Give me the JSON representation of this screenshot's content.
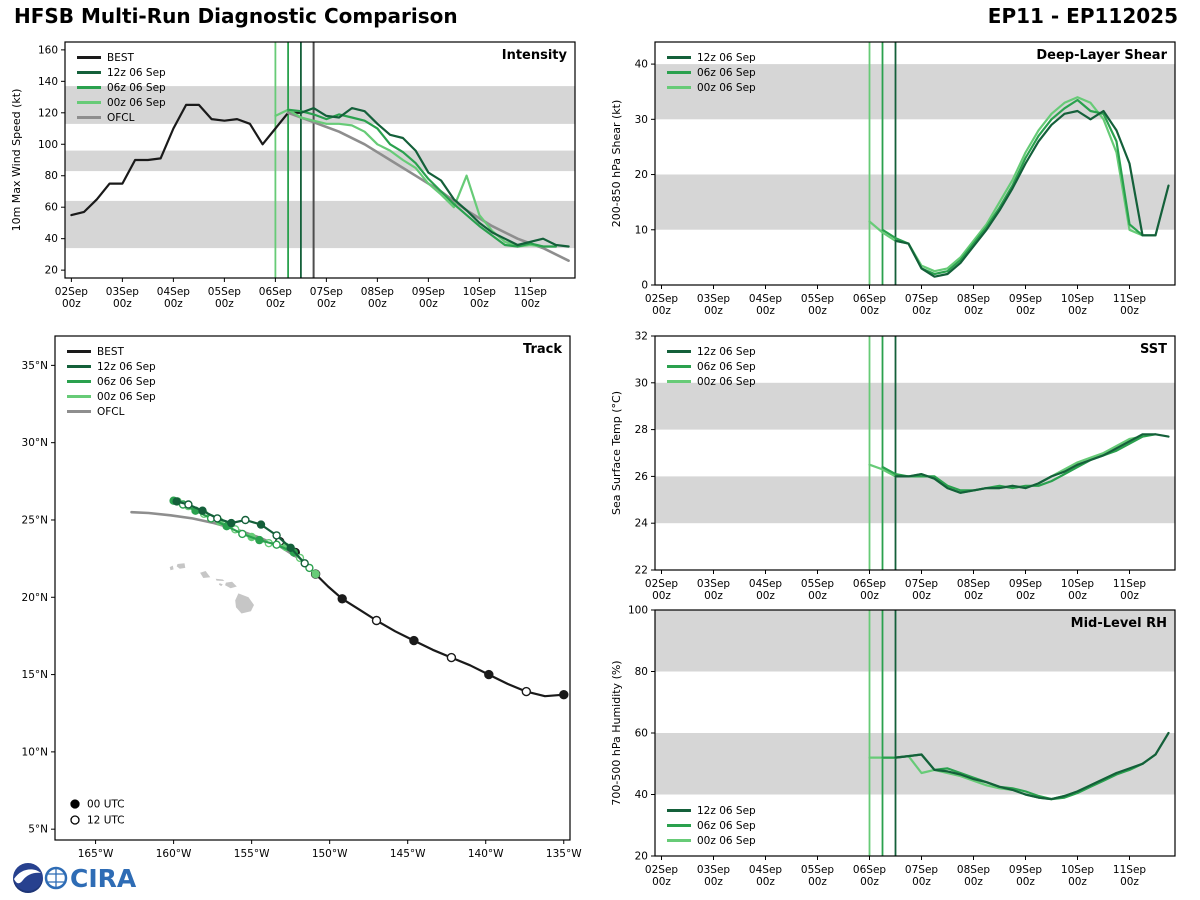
{
  "header": {
    "title": "HFSB Multi-Run Diagnostic Comparison",
    "storm_id": "EP11 - EP112025"
  },
  "palette": {
    "best": "#1a1a1a",
    "ofcl": "#8e8e8e",
    "run12z": "#14603a",
    "run06z": "#2aa14e",
    "run00z": "#67cb77",
    "band": "#d6d6d6"
  },
  "time_axis": {
    "tmin": -3,
    "tmax": 237,
    "ticks": [
      {
        "t": 0,
        "line1": "02Sep",
        "line2": "00z"
      },
      {
        "t": 24,
        "line1": "03Sep",
        "line2": "00z"
      },
      {
        "t": 48,
        "line1": "04Sep",
        "line2": "00z"
      },
      {
        "t": 72,
        "line1": "05Sep",
        "line2": "00z"
      },
      {
        "t": 96,
        "line1": "06Sep",
        "line2": "00z"
      },
      {
        "t": 120,
        "line1": "07Sep",
        "line2": "00z"
      },
      {
        "t": 144,
        "line1": "08Sep",
        "line2": "00z"
      },
      {
        "t": 168,
        "line1": "09Sep",
        "line2": "00z"
      },
      {
        "t": 192,
        "line1": "10Sep",
        "line2": "00z"
      },
      {
        "t": 216,
        "line1": "11Sep",
        "line2": "00z"
      }
    ]
  },
  "init_lines": [
    {
      "t": 96,
      "color": "run00z"
    },
    {
      "t": 102,
      "color": "run06z"
    },
    {
      "t": 108,
      "color": "run12z"
    }
  ],
  "chart_data": [
    {
      "id": "intensity",
      "type": "line",
      "title": "Intensity",
      "ylabel": "10m Max Wind Speed (kt)",
      "ylim": [
        15,
        165
      ],
      "yticks": [
        20,
        40,
        60,
        80,
        100,
        120,
        140,
        160
      ],
      "bands": [
        [
          34,
          64
        ],
        [
          83,
          96
        ],
        [
          113,
          137
        ]
      ],
      "extra_init_line": {
        "t": 114,
        "color_hex": "#4d4d4d"
      },
      "legend_pos": "top-left",
      "draw_order": [
        0,
        4,
        3,
        2,
        1
      ],
      "series": [
        {
          "name": "BEST",
          "color": "best",
          "width": 2.2,
          "start": 0,
          "step": 6,
          "values": [
            55,
            57,
            65,
            75,
            75,
            90,
            90,
            91,
            110,
            125,
            125,
            116,
            115,
            116,
            113,
            100,
            110,
            120,
            120
          ]
        },
        {
          "name": "12z 06 Sep",
          "color": "run12z",
          "width": 2.2,
          "start": 108,
          "step": 6,
          "values": [
            120,
            123,
            118,
            117,
            123,
            121,
            113,
            106,
            104,
            96,
            82,
            77,
            65,
            58,
            50,
            44,
            40,
            36,
            38,
            40,
            36,
            35
          ]
        },
        {
          "name": "06z 06 Sep",
          "color": "run06z",
          "width": 2.2,
          "start": 102,
          "step": 6,
          "values": [
            122,
            121,
            119,
            116,
            119,
            117,
            115,
            110,
            100,
            95,
            88,
            78,
            70,
            62,
            55,
            48,
            42,
            36,
            35,
            37,
            35,
            35
          ]
        },
        {
          "name": "00z 06 Sep",
          "color": "run00z",
          "width": 2.2,
          "start": 96,
          "step": 6,
          "values": [
            118,
            122,
            117,
            115,
            113,
            113,
            112,
            108,
            100,
            96,
            90,
            85,
            75,
            68,
            60,
            80,
            55,
            45,
            38,
            35,
            36,
            35
          ]
        },
        {
          "name": "OFCL",
          "color": "ofcl",
          "width": 2.6,
          "start": 102,
          "step": 12,
          "values": [
            120,
            114,
            108,
            100,
            90,
            80,
            70,
            58,
            48,
            40,
            34,
            26
          ]
        }
      ]
    },
    {
      "id": "shear",
      "type": "line",
      "title": "Deep-Layer Shear",
      "ylabel": "200-850 hPa Shear (kt)",
      "ylim": [
        0,
        44
      ],
      "yticks": [
        0,
        10,
        20,
        30,
        40
      ],
      "bands": [
        [
          10,
          20
        ],
        [
          30,
          40
        ]
      ],
      "legend_pos": "top-left",
      "draw_order": [
        2,
        1,
        0
      ],
      "series": [
        {
          "name": "12z 06 Sep",
          "color": "run12z",
          "width": 2.2,
          "start": 108,
          "step": 6,
          "values": [
            8,
            7.5,
            3,
            1.5,
            2,
            4,
            7,
            10,
            13.5,
            17.5,
            22,
            26,
            29,
            31,
            31.5,
            30,
            31.5,
            28,
            22,
            9,
            9,
            18
          ]
        },
        {
          "name": "06z 06 Sep",
          "color": "run06z",
          "width": 2.2,
          "start": 102,
          "step": 6,
          "values": [
            10,
            8.5,
            7.5,
            3,
            2,
            2.5,
            4.5,
            7.5,
            10.5,
            14,
            18,
            23,
            27,
            30,
            32,
            33.5,
            31.5,
            31,
            26,
            11,
            9,
            9
          ]
        },
        {
          "name": "00z 06 Sep",
          "color": "run00z",
          "width": 2.2,
          "start": 96,
          "step": 6,
          "values": [
            11.5,
            9.5,
            8,
            7.5,
            3.5,
            2.5,
            3,
            5,
            8,
            11,
            15,
            19,
            24,
            28,
            31,
            33,
            34,
            33,
            30,
            24,
            10,
            9
          ]
        }
      ]
    },
    {
      "id": "sst",
      "type": "line",
      "title": "SST",
      "ylabel": "Sea Surface Temp (°C)",
      "ylim": [
        22,
        32
      ],
      "yticks": [
        22,
        24,
        26,
        28,
        30,
        32
      ],
      "bands": [
        [
          24,
          26
        ],
        [
          28,
          30
        ]
      ],
      "legend_pos": "top-left",
      "draw_order": [
        2,
        1,
        0
      ],
      "series": [
        {
          "name": "12z 06 Sep",
          "color": "run12z",
          "width": 2.2,
          "start": 108,
          "step": 6,
          "values": [
            26.0,
            26.0,
            26.1,
            25.9,
            25.5,
            25.3,
            25.4,
            25.5,
            25.5,
            25.6,
            25.5,
            25.7,
            26.0,
            26.2,
            26.5,
            26.7,
            26.9,
            27.2,
            27.5,
            27.8,
            27.8,
            27.7
          ]
        },
        {
          "name": "06z 06 Sep",
          "color": "run06z",
          "width": 2.2,
          "start": 102,
          "step": 6,
          "values": [
            26.4,
            26.1,
            26.0,
            26.0,
            26.0,
            25.6,
            25.4,
            25.4,
            25.5,
            25.6,
            25.5,
            25.6,
            25.6,
            25.8,
            26.1,
            26.4,
            26.7,
            26.9,
            27.1,
            27.4,
            27.7,
            27.8
          ]
        },
        {
          "name": "00z 06 Sep",
          "color": "run00z",
          "width": 2.2,
          "start": 96,
          "step": 6,
          "values": [
            26.5,
            26.3,
            26.0,
            26.0,
            26.1,
            25.9,
            25.5,
            25.3,
            25.4,
            25.5,
            25.5,
            25.6,
            25.5,
            25.7,
            26.0,
            26.3,
            26.6,
            26.8,
            27.0,
            27.3,
            27.6,
            27.7
          ]
        }
      ]
    },
    {
      "id": "rh",
      "type": "line",
      "title": "Mid-Level RH",
      "ylabel": "700-500 hPa Humidity (%)",
      "ylim": [
        20,
        100
      ],
      "yticks": [
        20,
        40,
        60,
        80,
        100
      ],
      "bands": [
        [
          40,
          60
        ],
        [
          80,
          100
        ]
      ],
      "legend_pos": "bottom-left",
      "draw_order": [
        2,
        1,
        0
      ],
      "series": [
        {
          "name": "12z 06 Sep",
          "color": "run12z",
          "width": 2.2,
          "start": 108,
          "step": 6,
          "values": [
            52,
            52.5,
            53,
            48,
            47.5,
            46.5,
            45,
            44,
            42.5,
            41.5,
            40,
            39,
            38.5,
            39.5,
            41,
            43,
            45,
            47,
            48.5,
            50,
            53,
            60
          ]
        },
        {
          "name": "06z 06 Sep",
          "color": "run06z",
          "width": 2.2,
          "start": 102,
          "step": 6,
          "values": [
            52,
            52,
            52.5,
            53,
            48,
            48.5,
            47,
            45.5,
            44,
            42.5,
            42,
            41,
            39.5,
            38.5,
            39,
            40.5,
            42.5,
            44.5,
            46.5,
            48,
            50,
            53
          ]
        },
        {
          "name": "00z 06 Sep",
          "color": "run00z",
          "width": 2.2,
          "start": 96,
          "step": 6,
          "values": [
            52,
            52,
            52,
            52.5,
            47,
            48,
            47,
            46,
            44.5,
            43,
            42,
            41.5,
            40,
            39,
            38.5,
            39.5,
            41,
            43,
            45,
            47,
            48,
            50
          ]
        }
      ]
    },
    {
      "id": "track",
      "type": "track",
      "title": "Track",
      "lon_range": [
        167.6,
        134.6
      ],
      "lat_range": [
        4.3,
        36.9
      ],
      "lon_ticks": [
        {
          "v": 165,
          "label": "165°W"
        },
        {
          "v": 160,
          "label": "160°W"
        },
        {
          "v": 155,
          "label": "155°W"
        },
        {
          "v": 150,
          "label": "150°W"
        },
        {
          "v": 145,
          "label": "145°W"
        },
        {
          "v": 140,
          "label": "140°W"
        },
        {
          "v": 135,
          "label": "135°W"
        }
      ],
      "lat_ticks": [
        {
          "v": 5,
          "label": "5°N"
        },
        {
          "v": 10,
          "label": "10°N"
        },
        {
          "v": 15,
          "label": "15°N"
        },
        {
          "v": 20,
          "label": "20°N"
        },
        {
          "v": 25,
          "label": "25°N"
        },
        {
          "v": 30,
          "label": "30°N"
        },
        {
          "v": 35,
          "label": "35°N"
        }
      ],
      "islands": [
        [
          [
            155.85,
            20.25
          ],
          [
            155.2,
            20.0
          ],
          [
            154.85,
            19.5
          ],
          [
            155.05,
            19.1
          ],
          [
            155.65,
            18.95
          ],
          [
            156.0,
            19.35
          ],
          [
            156.05,
            19.8
          ]
        ],
        [
          [
            156.65,
            20.95
          ],
          [
            156.25,
            21.0
          ],
          [
            155.95,
            20.7
          ],
          [
            156.35,
            20.58
          ],
          [
            156.7,
            20.78
          ]
        ],
        [
          [
            157.3,
            21.2
          ],
          [
            156.85,
            21.15
          ],
          [
            156.75,
            21.05
          ],
          [
            157.25,
            21.08
          ]
        ],
        [
          [
            157.05,
            20.92
          ],
          [
            156.85,
            20.83
          ],
          [
            156.95,
            20.72
          ],
          [
            157.1,
            20.82
          ]
        ],
        [
          [
            158.3,
            21.58
          ],
          [
            157.95,
            21.7
          ],
          [
            157.65,
            21.3
          ],
          [
            158.1,
            21.25
          ]
        ],
        [
          [
            159.75,
            22.15
          ],
          [
            159.3,
            22.2
          ],
          [
            159.25,
            21.9
          ],
          [
            159.6,
            21.85
          ],
          [
            159.8,
            22.0
          ]
        ],
        [
          [
            160.25,
            21.95
          ],
          [
            160.05,
            22.05
          ],
          [
            160.0,
            21.8
          ],
          [
            160.2,
            21.75
          ]
        ]
      ],
      "legend_pos": "top-left",
      "draw_order": [
        0,
        4,
        3,
        2,
        1
      ],
      "series": [
        {
          "name": "BEST",
          "color": "best",
          "width": 2.2,
          "marker_every": 2,
          "filled_first": true,
          "points": [
            [
              135.0,
              13.7
            ],
            [
              136.2,
              13.6
            ],
            [
              137.4,
              13.9
            ],
            [
              138.6,
              14.4
            ],
            [
              139.8,
              15.0
            ],
            [
              141.0,
              15.6
            ],
            [
              142.2,
              16.1
            ],
            [
              143.4,
              16.6
            ],
            [
              144.6,
              17.2
            ],
            [
              145.8,
              17.8
            ],
            [
              147.0,
              18.5
            ],
            [
              148.1,
              19.2
            ],
            [
              149.2,
              19.9
            ],
            [
              150.1,
              20.7
            ],
            [
              150.9,
              21.5
            ],
            [
              151.6,
              22.2
            ],
            [
              152.2,
              22.9
            ],
            [
              152.7,
              23.4
            ],
            [
              153.2,
              23.6
            ]
          ]
        },
        {
          "name": "12z 06 Sep",
          "color": "run12z",
          "width": 2.2,
          "marker_every": 1,
          "filled_first": false,
          "points": [
            [
              151.6,
              22.2
            ],
            [
              152.5,
              23.2
            ],
            [
              153.4,
              24.0
            ],
            [
              154.4,
              24.7
            ],
            [
              155.4,
              25.0
            ],
            [
              156.3,
              24.8
            ],
            [
              157.2,
              25.1
            ],
            [
              158.15,
              25.6
            ],
            [
              159.05,
              26.0
            ],
            [
              159.8,
              26.2
            ]
          ]
        },
        {
          "name": "06z 06 Sep",
          "color": "run06z",
          "width": 2.2,
          "marker_every": 1,
          "filled_first": false,
          "points": [
            [
              151.3,
              21.9
            ],
            [
              152.3,
              22.9
            ],
            [
              153.4,
              23.4
            ],
            [
              154.5,
              23.7
            ],
            [
              155.6,
              24.1
            ],
            [
              156.6,
              24.6
            ],
            [
              157.6,
              25.1
            ],
            [
              158.6,
              25.6
            ],
            [
              159.4,
              26.0
            ],
            [
              160.0,
              26.25
            ]
          ]
        },
        {
          "name": "00z 06 Sep",
          "color": "run00z",
          "width": 2.2,
          "marker_every": 1,
          "filled_first": true,
          "points": [
            [
              150.9,
              21.5
            ],
            [
              151.9,
              22.55
            ],
            [
              152.8,
              23.25
            ],
            [
              153.9,
              23.5
            ],
            [
              155.0,
              23.9
            ],
            [
              156.05,
              24.4
            ],
            [
              157.05,
              24.9
            ],
            [
              158.05,
              25.4
            ],
            [
              159.05,
              25.9
            ],
            [
              159.75,
              26.2
            ]
          ]
        },
        {
          "name": "OFCL",
          "color": "ofcl",
          "width": 2.6,
          "marker_every": 0,
          "filled_first": true,
          "points": [
            [
              151.8,
              22.4
            ],
            [
              153.2,
              23.3
            ],
            [
              154.6,
              23.9
            ],
            [
              156.0,
              24.4
            ],
            [
              157.4,
              24.8
            ],
            [
              158.8,
              25.1
            ],
            [
              160.2,
              25.3
            ],
            [
              161.6,
              25.45
            ],
            [
              162.7,
              25.5
            ]
          ]
        }
      ],
      "marker_legend": [
        {
          "filled": true,
          "label": "00 UTC"
        },
        {
          "filled": false,
          "label": "12 UTC"
        }
      ]
    }
  ],
  "logos": {
    "cira_text": "CIRA"
  }
}
